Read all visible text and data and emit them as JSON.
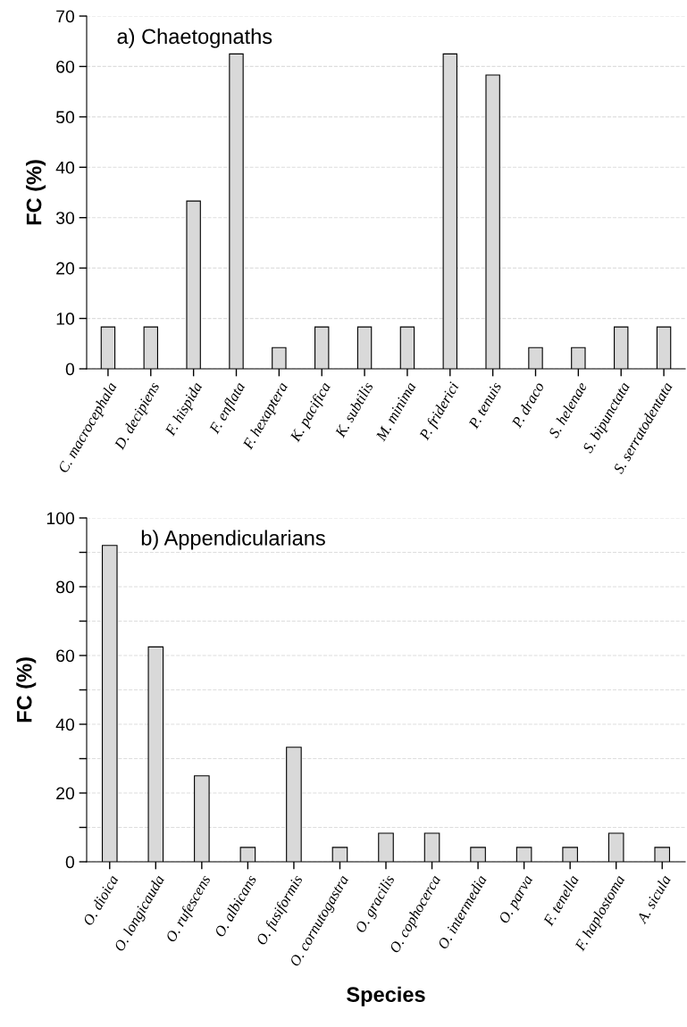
{
  "chart_data": [
    {
      "type": "bar",
      "title": "a) Chaetognaths",
      "ylabel": "FC (%)",
      "categories": [
        "C. macrocephala",
        "D. decipiens",
        "F. hispida",
        "F. enflata",
        "F. hexaptera",
        "K. pacifica",
        "K. subtilis",
        "M. minima",
        "P. friderici",
        "P. tenuis",
        "P. draco",
        "S. helenae",
        "S. bipunctata",
        "S. serratodentata"
      ],
      "values": [
        8.3,
        8.3,
        33.3,
        62.5,
        4.2,
        8.3,
        8.3,
        8.3,
        62.5,
        58.3,
        4.2,
        4.2,
        8.3,
        8.3
      ],
      "color": "#d9d9d9",
      "ylim": [
        0,
        70
      ],
      "yticks": [
        0,
        10,
        20,
        30,
        40,
        50,
        60,
        70
      ],
      "grid": "y"
    },
    {
      "type": "bar",
      "title": "b) Appendicularians",
      "ylabel": "FC (%)",
      "xlabel": "Species",
      "categories": [
        "O. dioica",
        "O. longicauda",
        "O. rufescens",
        "O. albicans",
        "O. fusiformis",
        "O. cornutogastra",
        "O. gracilis",
        "O. cophocerca",
        "O. intermedia",
        "O. parva",
        "F. tenella",
        "F. haplostoma",
        "A. sicula"
      ],
      "values": [
        92,
        62.5,
        25,
        4.2,
        33.3,
        4.2,
        8.3,
        8.3,
        4.2,
        4.2,
        4.2,
        8.3,
        4.2
      ],
      "color": "#d9d9d9",
      "ylim": [
        0,
        100
      ],
      "yticks": [
        0,
        {
          "value": 10,
          "label": null
        },
        20,
        {
          "value": 30,
          "label": null
        },
        40,
        {
          "value": 50,
          "label": null
        },
        60,
        {
          "value": 70,
          "label": null
        },
        80,
        {
          "value": 90,
          "label": null
        },
        100
      ],
      "grid": "y"
    }
  ]
}
